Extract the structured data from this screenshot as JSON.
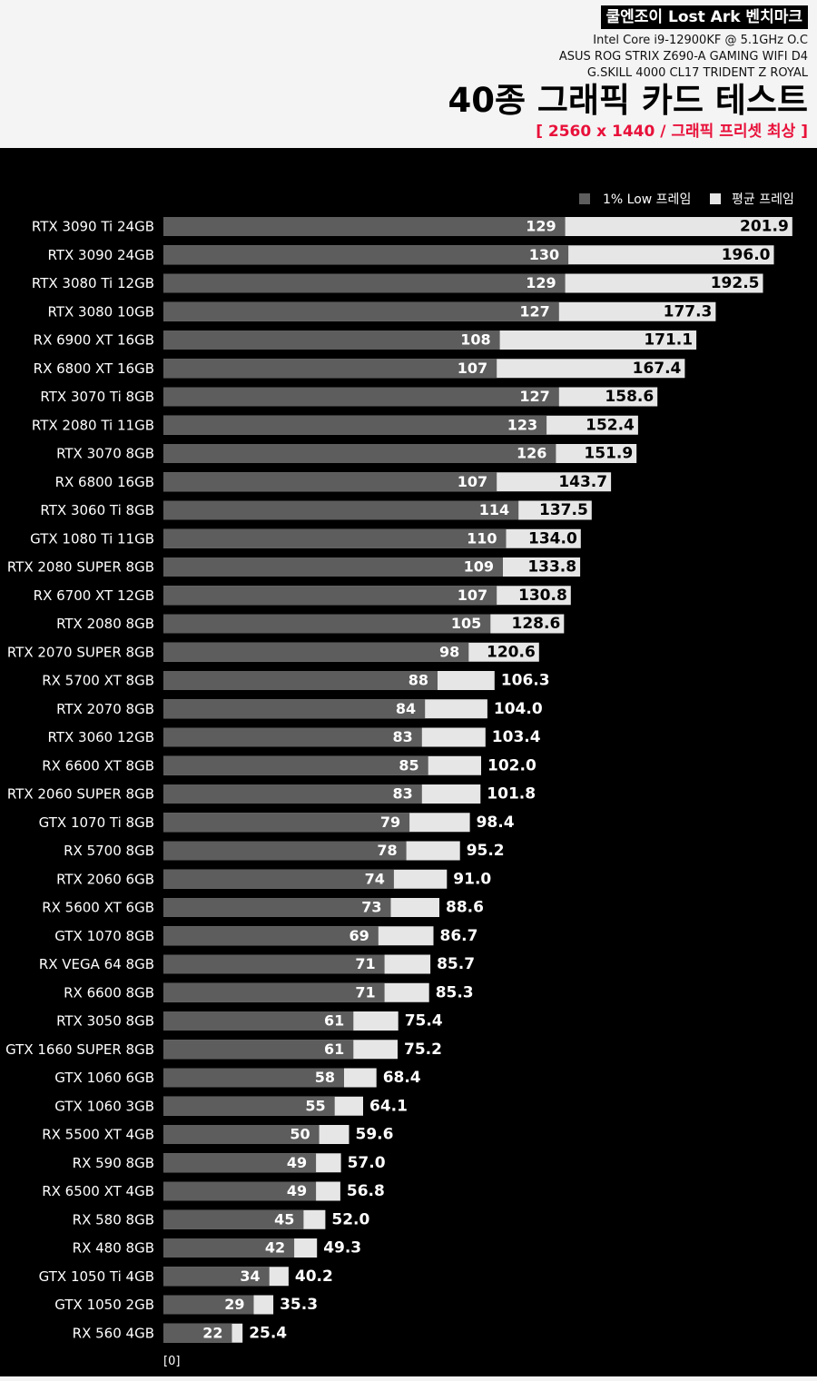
{
  "header": {
    "brand": "쿨엔조이 Lost Ark 벤치마크",
    "spec_cpu": "Intel Core i9-12900KF @ 5.1GHz O.C",
    "spec_board": "ASUS ROG STRIX Z690-A GAMING WIFI D4",
    "spec_memory": "G.SKILL 4000 CL17 TRIDENT Z ROYAL",
    "title": "40종 그래픽 카드 테스트",
    "subtitle": "[ 2560 x 1440 / 그래픽 프리셋 최상 ]"
  },
  "colors": {
    "low_bar": "#5d5d5d",
    "avg_bar": "#e6e6e6",
    "background": "#000000",
    "header_bg": "#f4f4f4",
    "subtitle": "#e8113a"
  },
  "chart_data": {
    "type": "bar",
    "orientation": "horizontal",
    "title": "40종 그래픽 카드 테스트",
    "xlabel": "",
    "ylabel": "",
    "xlim": [
      0,
      204
    ],
    "axis_origin_label": "[0]",
    "legend_position": "top-right",
    "categories": [
      "RTX 3090 Ti 24GB",
      "RTX 3090 24GB",
      "RTX 3080 Ti 12GB",
      "RTX 3080 10GB",
      "RX 6900 XT 16GB",
      "RX 6800 XT 16GB",
      "RTX 3070 Ti 8GB",
      "RTX 2080 Ti 11GB",
      "RTX 3070 8GB",
      "RX 6800 16GB",
      "RTX 3060 Ti 8GB",
      "GTX 1080 Ti 11GB",
      "RTX 2080 SUPER 8GB",
      "RX 6700 XT 12GB",
      "RTX 2080 8GB",
      "RTX 2070 SUPER 8GB",
      "RX 5700 XT 8GB",
      "RTX 2070 8GB",
      "RTX 3060 12GB",
      "RX 6600 XT 8GB",
      "RTX 2060 SUPER 8GB",
      "GTX 1070 Ti 8GB",
      "RX 5700 8GB",
      "RTX 2060 6GB",
      "RX 5600 XT 6GB",
      "GTX 1070 8GB",
      "RX VEGA 64 8GB",
      "RX 6600 8GB",
      "RTX 3050 8GB",
      "GTX 1660 SUPER 8GB",
      "GTX 1060 6GB",
      "GTX 1060 3GB",
      "RX 5500 XT 4GB",
      "RX 590 8GB",
      "RX 6500 XT 4GB",
      "RX 580 8GB",
      "RX 480 8GB",
      "GTX 1050 Ti 4GB",
      "GTX 1050 2GB",
      "RX 560 4GB"
    ],
    "series": [
      {
        "name": "1% Low 프레임",
        "values": [
          129,
          130,
          129,
          127,
          108,
          107,
          127,
          123,
          126,
          107,
          114,
          110,
          109,
          107,
          105,
          98,
          88,
          84,
          83,
          85,
          83,
          79,
          78,
          74,
          73,
          69,
          71,
          71,
          61,
          61,
          58,
          55,
          50,
          49,
          49,
          45,
          42,
          34,
          29,
          22
        ]
      },
      {
        "name": "평균 프레임",
        "values": [
          201.9,
          196.0,
          192.5,
          177.3,
          171.1,
          167.4,
          158.6,
          152.4,
          151.9,
          143.7,
          137.5,
          134.0,
          133.8,
          130.8,
          128.6,
          120.6,
          106.3,
          104.0,
          103.4,
          102.0,
          101.8,
          98.4,
          95.2,
          91.0,
          88.6,
          86.7,
          85.7,
          85.3,
          75.4,
          75.2,
          68.4,
          64.1,
          59.6,
          57.0,
          56.8,
          52.0,
          49.3,
          40.2,
          35.3,
          25.4
        ]
      }
    ]
  }
}
